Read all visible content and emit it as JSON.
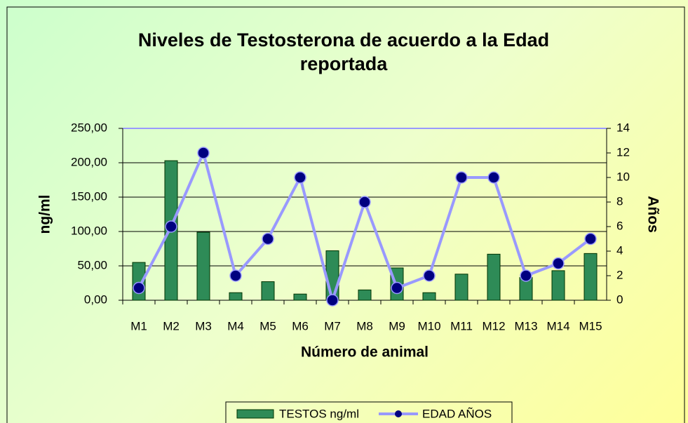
{
  "chart_data": {
    "type": "bar_line",
    "title": "Niveles de Testosterona de acuerdo a la Edad reportada",
    "x_label": "Número de animal",
    "y_label": "ng/ml",
    "y2_label": "Años",
    "categories": [
      "M1",
      "M2",
      "M3",
      "M4",
      "M5",
      "M6",
      "M7",
      "M8",
      "M9",
      "M10",
      "M11",
      "M12",
      "M13",
      "M14",
      "M15"
    ],
    "series": [
      {
        "name": "TESTOS ng/ml",
        "type": "bar",
        "color": "#2e8b57",
        "values": [
          55,
          203,
          99,
          11,
          27,
          9,
          72,
          15,
          47,
          11,
          38,
          67,
          33,
          43,
          68
        ]
      },
      {
        "name": "EDAD AÑOS",
        "type": "line",
        "axis": "y2",
        "color": "#9999ff",
        "marker_color": "#000080",
        "values": [
          1,
          6,
          12,
          2,
          5,
          10,
          0,
          8,
          1,
          2,
          10,
          10,
          2,
          3,
          5
        ]
      }
    ],
    "ylim": [
      0,
      250
    ],
    "yticks": [
      {
        "value": 0,
        "label": "0,00"
      },
      {
        "value": 50,
        "label": "50,00"
      },
      {
        "value": 100,
        "label": "100,00"
      },
      {
        "value": 150,
        "label": "150,00"
      },
      {
        "value": 200,
        "label": "200,00"
      },
      {
        "value": 250,
        "label": "250,00"
      }
    ],
    "y2lim": [
      0,
      14
    ],
    "y2ticks": [
      0,
      2,
      4,
      6,
      8,
      10,
      12,
      14
    ],
    "grid": true,
    "legend": "bottom"
  }
}
